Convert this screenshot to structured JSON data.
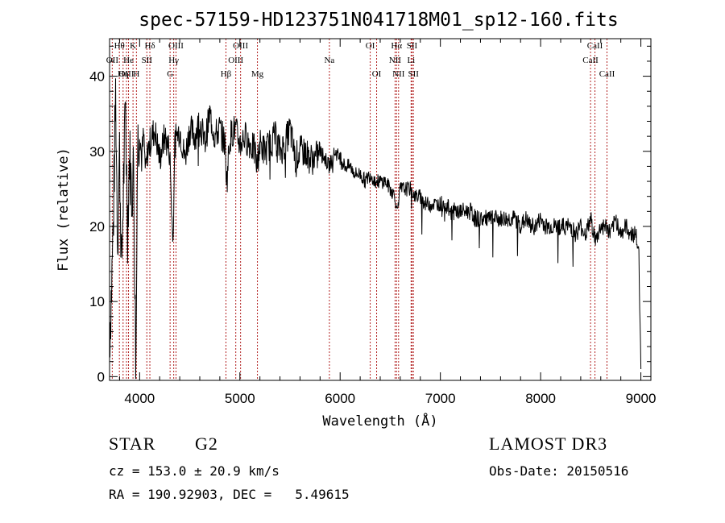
{
  "colors": {
    "spectrum": "#000000",
    "lines": "#b22222",
    "axis": "#000000"
  },
  "info": {
    "object_class": "STAR",
    "subclass": "G2",
    "redshift": "cz = 153.0 ± 20.9 km/s",
    "coords": "RA = 190.92903, DEC =   5.49615",
    "survey": "LAMOST DR3",
    "obs_date": "Obs-Date: 20150516"
  },
  "chart_data": {
    "type": "line",
    "title": "spec-57159-HD123751N041718M01_sp12-160.fits",
    "xlabel": "Wavelength (Å)",
    "ylabel": "Flux (relative)",
    "xlim": [
      3700,
      9100
    ],
    "ylim": [
      -0.5,
      45
    ],
    "xticks": [
      4000,
      5000,
      6000,
      7000,
      8000,
      9000
    ],
    "yticks": [
      0,
      10,
      20,
      30,
      40
    ],
    "spectrum": {
      "x": [
        3700,
        3720,
        3740,
        3760,
        3780,
        3800,
        3820,
        3840,
        3860,
        3880,
        3900,
        3920,
        3940,
        3960,
        3980,
        4000,
        4020,
        4040,
        4060,
        4080,
        4100,
        4150,
        4200,
        4250,
        4300,
        4330,
        4350,
        4400,
        4450,
        4500,
        4550,
        4600,
        4650,
        4700,
        4750,
        4800,
        4850,
        4870,
        4900,
        4950,
        5000,
        5050,
        5100,
        5150,
        5170,
        5200,
        5250,
        5300,
        5350,
        5400,
        5450,
        5500,
        5550,
        5600,
        5650,
        5700,
        5750,
        5800,
        5850,
        5890,
        5950,
        6000,
        6050,
        6100,
        6150,
        6200,
        6250,
        6300,
        6350,
        6400,
        6450,
        6500,
        6550,
        6563,
        6600,
        6650,
        6700,
        6750,
        6800,
        6850,
        6900,
        6950,
        7000,
        7050,
        7100,
        7150,
        7200,
        7250,
        7300,
        7350,
        7400,
        7450,
        7500,
        7550,
        7600,
        7650,
        7700,
        7750,
        7800,
        7850,
        7900,
        7950,
        8000,
        8050,
        8100,
        8150,
        8200,
        8250,
        8300,
        8350,
        8400,
        8450,
        8500,
        8550,
        8600,
        8650,
        8700,
        8750,
        8800,
        8850,
        8900,
        8950,
        8980,
        9000
      ],
      "y": [
        5,
        12,
        22,
        38,
        18,
        30,
        14,
        26,
        36,
        20,
        30,
        24,
        28,
        3,
        31,
        33,
        29,
        32,
        27,
        30,
        31,
        33,
        29,
        32,
        30,
        18,
        31,
        33,
        29,
        33,
        32,
        34,
        31,
        35,
        32,
        33,
        31,
        26,
        32,
        33,
        31,
        32,
        31,
        30,
        28,
        31,
        30,
        31,
        32,
        30,
        31,
        33,
        29,
        30,
        30,
        29,
        29,
        30,
        29,
        28,
        30,
        29,
        28,
        28,
        27,
        27,
        26,
        27,
        26,
        26,
        26,
        25,
        24,
        22,
        25,
        25,
        25,
        24,
        24,
        23,
        23,
        23,
        23,
        23,
        22,
        22,
        22,
        22,
        22,
        21,
        21,
        21,
        21,
        21,
        21,
        21,
        21,
        21,
        20,
        21,
        20,
        20,
        21,
        20,
        20,
        20,
        20,
        20,
        20,
        19,
        20,
        19,
        21,
        18,
        20,
        20,
        19,
        21,
        19,
        20,
        19,
        19,
        16,
        1
      ]
    },
    "spectral_lines": [
      {
        "name": "Hθ",
        "wavelength": 3798,
        "row": 1
      },
      {
        "name": "K",
        "wavelength": 3934,
        "row": 1
      },
      {
        "name": "Hδ",
        "wavelength": 4102,
        "row": 1
      },
      {
        "name": "OIII",
        "wavelength": 4363,
        "row": 1
      },
      {
        "name": "OIII",
        "wavelength": 5007,
        "row": 1
      },
      {
        "name": "OI",
        "wavelength": 6300,
        "row": 1
      },
      {
        "name": "Hα",
        "wavelength": 6563,
        "row": 1
      },
      {
        "name": "SII",
        "wavelength": 6717,
        "row": 1
      },
      {
        "name": "CaII",
        "wavelength": 8542,
        "row": 1
      },
      {
        "name": "OII",
        "wavelength": 3727,
        "row": 2
      },
      {
        "name": "He",
        "wavelength": 3889,
        "row": 2
      },
      {
        "name": "SII",
        "wavelength": 4072,
        "row": 2
      },
      {
        "name": "Hγ",
        "wavelength": 4340,
        "row": 2
      },
      {
        "name": "OIII",
        "wavelength": 4959,
        "row": 2
      },
      {
        "name": "Na",
        "wavelength": 5893,
        "row": 2
      },
      {
        "name": "NII",
        "wavelength": 6548,
        "row": 2
      },
      {
        "name": "Li",
        "wavelength": 6708,
        "row": 2
      },
      {
        "name": "CaII",
        "wavelength": 8498,
        "row": 2
      },
      {
        "name": "OIII",
        "wavelength": 3869,
        "row": 3
      },
      {
        "name": "Hη",
        "wavelength": 3835,
        "row": 3
      },
      {
        "name": "H",
        "wavelength": 3968,
        "row": 3
      },
      {
        "name": "G",
        "wavelength": 4304,
        "row": 3
      },
      {
        "name": "Hβ",
        "wavelength": 4861,
        "row": 3
      },
      {
        "name": "Mg",
        "wavelength": 5175,
        "row": 3
      },
      {
        "name": "OI",
        "wavelength": 6364,
        "row": 3
      },
      {
        "name": "NII",
        "wavelength": 6583,
        "row": 3
      },
      {
        "name": "SII",
        "wavelength": 6731,
        "row": 3
      },
      {
        "name": "CaII",
        "wavelength": 8662,
        "row": 3
      }
    ]
  }
}
